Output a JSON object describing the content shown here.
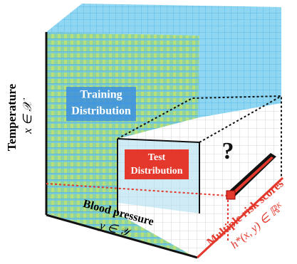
{
  "axes": {
    "vertical": {
      "label": "Temperature",
      "symbol": "x ∈ 𝒳"
    },
    "depth": {
      "label": "Blood pressure",
      "symbol": "y ∈ 𝒴"
    },
    "output": {
      "label": "Multiple risk scores",
      "symbol": "h*(x, y) ∈ ℝᴷ"
    }
  },
  "regions": {
    "training": {
      "line1": "Training",
      "line2": "Distribution"
    },
    "test": {
      "line1": "Test",
      "line2": "Distribution"
    },
    "unknown": "?"
  }
}
